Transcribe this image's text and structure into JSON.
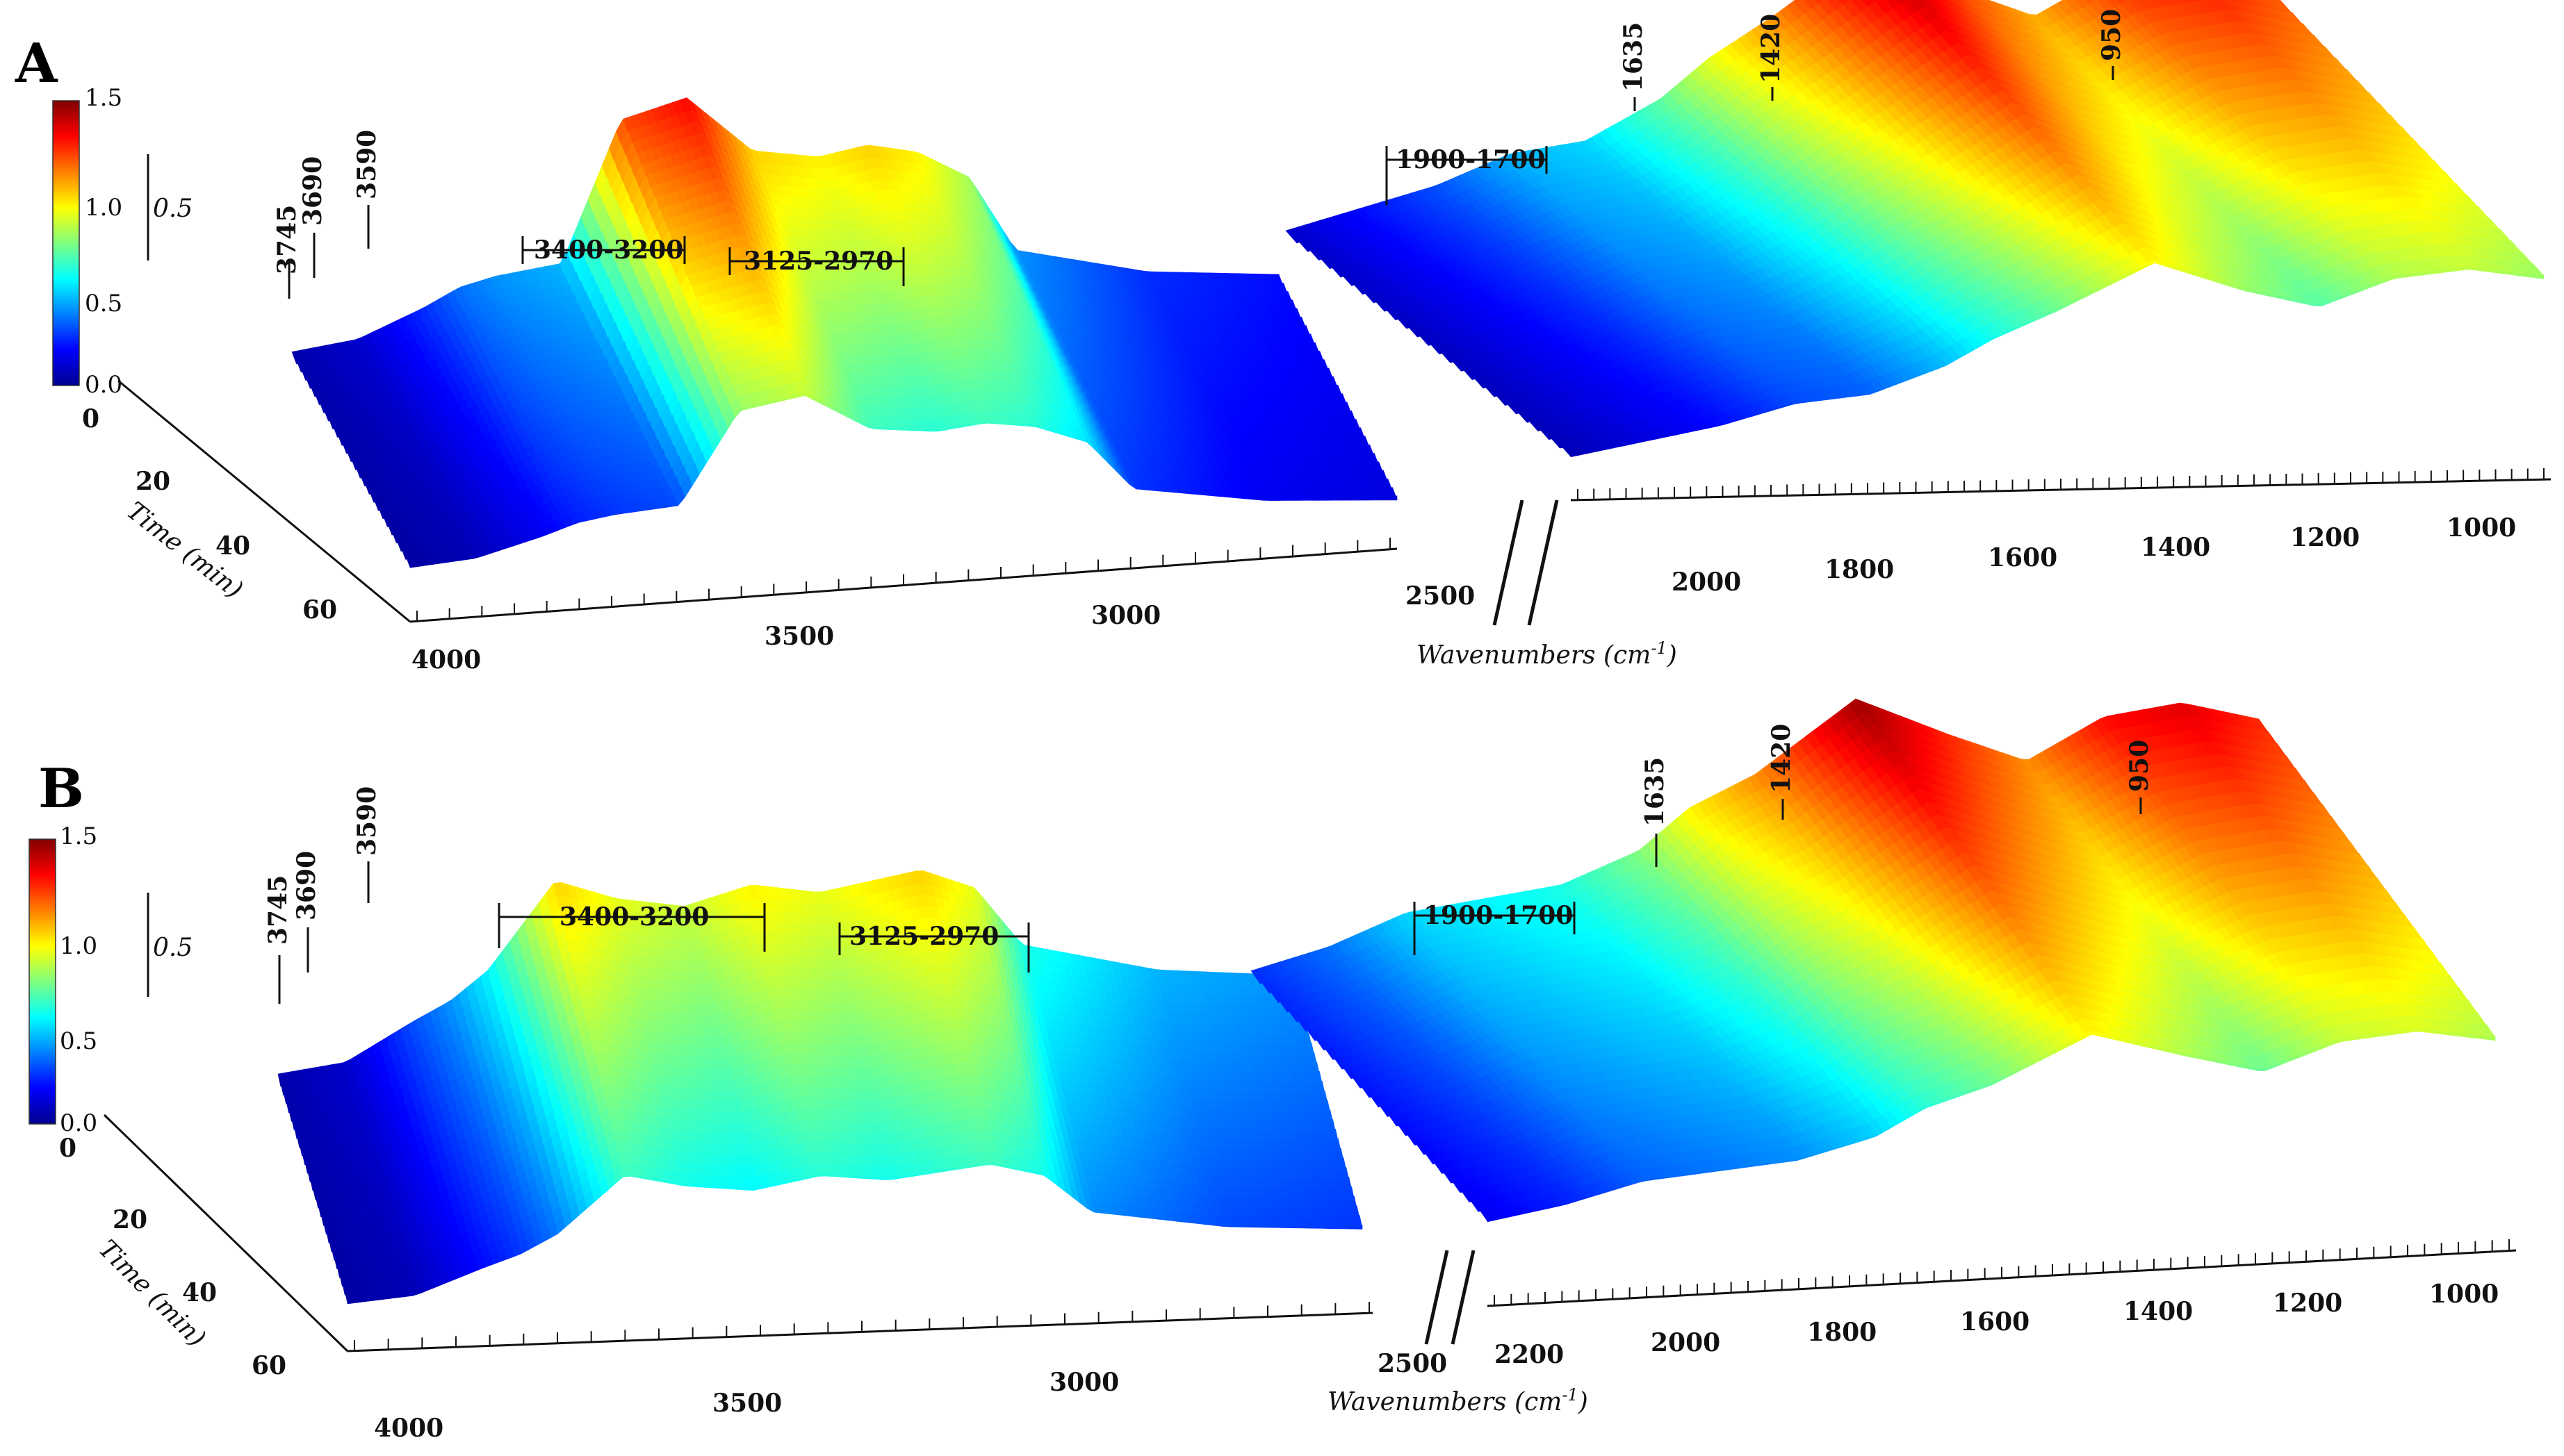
{
  "chart_data": [
    {
      "type": "surface",
      "panel_label": "A",
      "x_axis_label": "Wavenumbers (cm",
      "x_axis_label_sup": "-1",
      "y_axis_label": "Time (min)",
      "x_ticks_left": [
        "4000",
        "3500",
        "3000",
        "2500"
      ],
      "x_ticks_right": [
        "2000",
        "1800",
        "1600",
        "1400",
        "1200",
        "1000"
      ],
      "y_ticks": [
        "0",
        "20",
        "40",
        "60"
      ],
      "colorbar": {
        "min": 0.0,
        "max": 1.5,
        "labels": [
          "1.5",
          "1.0",
          "0.5",
          "0.0"
        ],
        "scale_label": "0.5"
      },
      "peak_labels": [
        "3745",
        "3690",
        "3590",
        "3400-3200",
        "3125-2970",
        "1900-1700",
        "1635",
        "1420",
        "950"
      ],
      "profile_left": [
        [
          4000,
          0.05
        ],
        [
          3900,
          0.1
        ],
        [
          3800,
          0.25
        ],
        [
          3745,
          0.35
        ],
        [
          3690,
          0.4
        ],
        [
          3590,
          0.45
        ],
        [
          3500,
          1.2
        ],
        [
          3400,
          1.3
        ],
        [
          3300,
          1.0
        ],
        [
          3200,
          0.95
        ],
        [
          3125,
          1.0
        ],
        [
          3050,
          0.95
        ],
        [
          2970,
          0.8
        ],
        [
          2900,
          0.4
        ],
        [
          2700,
          0.25
        ],
        [
          2500,
          0.2
        ]
      ],
      "profile_right": [
        [
          2200,
          0.1
        ],
        [
          2100,
          0.2
        ],
        [
          2000,
          0.3
        ],
        [
          1900,
          0.45
        ],
        [
          1800,
          0.5
        ],
        [
          1700,
          0.7
        ],
        [
          1635,
          0.9
        ],
        [
          1550,
          1.1
        ],
        [
          1420,
          1.45
        ],
        [
          1300,
          1.2
        ],
        [
          1200,
          1.05
        ],
        [
          1100,
          1.25
        ],
        [
          1000,
          1.3
        ],
        [
          900,
          1.2
        ]
      ]
    },
    {
      "type": "surface",
      "panel_label": "B",
      "x_axis_label": "Wavenumbers (cm",
      "x_axis_label_sup": "-1",
      "y_axis_label": "Time (min)",
      "x_ticks_left": [
        "4000",
        "3500",
        "3000",
        "2500"
      ],
      "x_ticks_right": [
        "2200",
        "2000",
        "1800",
        "1600",
        "1400",
        "1200",
        "1000"
      ],
      "y_ticks": [
        "0",
        "20",
        "40",
        "60"
      ],
      "colorbar": {
        "min": 0.0,
        "max": 1.5,
        "labels": [
          "1.5",
          "1.0",
          "0.5",
          "0.0"
        ],
        "scale_label": "0.5"
      },
      "peak_labels": [
        "3745",
        "3690",
        "3590",
        "3400-3200",
        "3125-2970",
        "1900-1700",
        "1635",
        "1420",
        "950"
      ],
      "profile_left": [
        [
          4000,
          0.05
        ],
        [
          3900,
          0.1
        ],
        [
          3800,
          0.3
        ],
        [
          3745,
          0.4
        ],
        [
          3690,
          0.55
        ],
        [
          3590,
          1.0
        ],
        [
          3500,
          0.9
        ],
        [
          3400,
          0.85
        ],
        [
          3300,
          0.95
        ],
        [
          3200,
          0.9
        ],
        [
          3125,
          0.95
        ],
        [
          3050,
          1.0
        ],
        [
          2970,
          0.9
        ],
        [
          2900,
          0.6
        ],
        [
          2700,
          0.45
        ],
        [
          2500,
          0.4
        ]
      ],
      "profile_right": [
        [
          2200,
          0.25
        ],
        [
          2100,
          0.35
        ],
        [
          2000,
          0.5
        ],
        [
          1900,
          0.55
        ],
        [
          1800,
          0.6
        ],
        [
          1700,
          0.75
        ],
        [
          1635,
          0.95
        ],
        [
          1550,
          1.1
        ],
        [
          1420,
          1.45
        ],
        [
          1300,
          1.25
        ],
        [
          1200,
          1.1
        ],
        [
          1100,
          1.3
        ],
        [
          1000,
          1.35
        ],
        [
          900,
          1.25
        ]
      ]
    }
  ]
}
